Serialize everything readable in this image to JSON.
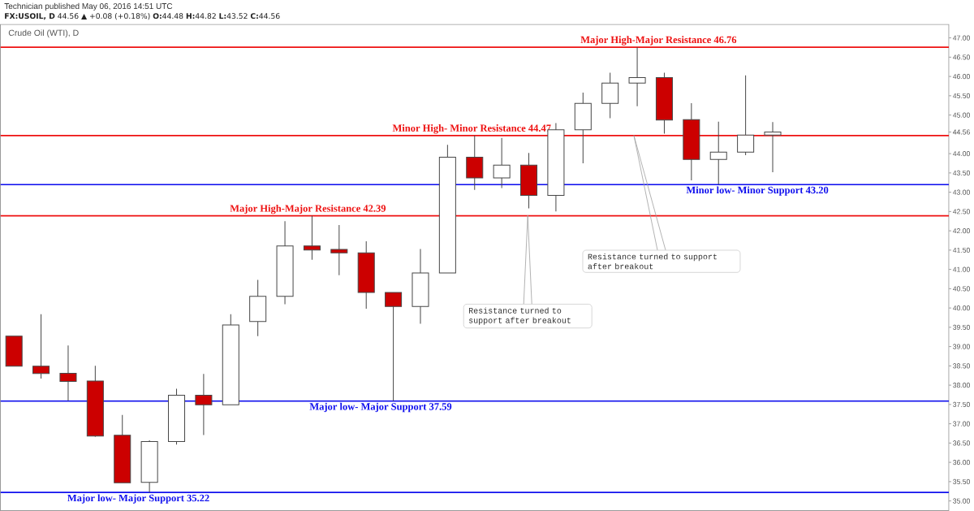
{
  "chart_data": {
    "type": "candlestick",
    "title": "Crude Oil (WTI), D",
    "subtitle": "**FX:USOIL, D** 44.56 ▲ +0.08 (+0.18%) **O:**44.48 **H:**44.82 **L:**43.52 **C:**44.56",
    "categories": [
      null,
      null,
      null,
      null,
      null,
      null,
      null,
      null,
      null,
      null,
      null,
      null,
      null,
      null,
      null,
      null,
      null,
      null,
      null,
      null,
      null,
      null,
      null,
      null,
      null,
      null,
      null,
      null,
      null,
      null,
      null,
      null,
      null,
      null,
      null
    ],
    "ohlc": [
      [
        39.27,
        39.27,
        38.49,
        38.49
      ],
      [
        38.49,
        39.84,
        38.17,
        38.3
      ],
      [
        38.31,
        39.03,
        37.6,
        38.1
      ],
      [
        38.11,
        38.5,
        36.66,
        36.68
      ],
      [
        36.7,
        37.23,
        35.47,
        35.47
      ],
      [
        35.48,
        36.57,
        35.22,
        36.54
      ],
      [
        36.54,
        37.91,
        36.46,
        37.74
      ],
      [
        37.74,
        38.29,
        36.71,
        37.49
      ],
      [
        37.49,
        39.84,
        37.48,
        39.56
      ],
      [
        39.65,
        40.73,
        39.27,
        40.3
      ],
      [
        40.3,
        42.25,
        40.1,
        41.61
      ],
      [
        41.61,
        42.39,
        41.25,
        41.5
      ],
      [
        41.52,
        42.15,
        40.85,
        41.43
      ],
      [
        41.43,
        41.73,
        39.98,
        40.4
      ],
      [
        40.4,
        40.4,
        37.59,
        40.04
      ],
      [
        40.04,
        41.53,
        39.59,
        40.91
      ],
      [
        40.91,
        44.23,
        40.91,
        43.91
      ],
      [
        43.91,
        44.47,
        43.06,
        43.37
      ],
      [
        43.37,
        44.41,
        43.11,
        43.7
      ],
      [
        43.7,
        44.02,
        42.58,
        42.92
      ],
      [
        42.92,
        44.79,
        42.5,
        44.62
      ],
      [
        44.62,
        45.58,
        43.75,
        45.3
      ],
      [
        45.3,
        46.1,
        44.92,
        45.83
      ],
      [
        45.83,
        46.76,
        45.23,
        45.97
      ],
      [
        45.97,
        46.1,
        44.52,
        44.87
      ],
      [
        44.88,
        45.31,
        43.31,
        43.85
      ],
      [
        43.85,
        44.83,
        43.2,
        44.04
      ],
      [
        44.04,
        46.03,
        43.96,
        44.48
      ],
      [
        44.48,
        44.82,
        43.52,
        44.56
      ],
      null,
      null,
      null,
      null,
      null,
      null
    ],
    "colors": [
      "#cc0000",
      "#cc0000",
      "#cc0000",
      "#cc0000",
      "#cc0000",
      "#ffffff",
      "#ffffff",
      "#cc0000",
      "#ffffff",
      "#ffffff",
      "#ffffff",
      "#cc0000",
      "#cc0000",
      "#cc0000",
      "#cc0000",
      "#ffffff",
      "#ffffff",
      "#cc0000",
      "#ffffff",
      "#cc0000",
      "#ffffff",
      "#ffffff",
      "#ffffff",
      "#ffffff",
      "#cc0000",
      "#cc0000",
      "#ffffff",
      "#ffffff",
      "#ffffff",
      null,
      null,
      null,
      null,
      null,
      null
    ],
    "ylim": [
      34.75,
      47.35
    ],
    "yticks": [
      {
        "value": 35,
        "label": "35.00"
      },
      {
        "value": 35.5,
        "label": "35.50"
      },
      {
        "value": 36,
        "label": "36.00"
      },
      {
        "value": 36.5,
        "label": "36.50"
      },
      {
        "value": 37,
        "label": "37.00"
      },
      {
        "value": 37.5,
        "label": "37.50"
      },
      {
        "value": 38,
        "label": "38.00"
      },
      {
        "value": 38.5,
        "label": "38.50"
      },
      {
        "value": 39,
        "label": "39.00"
      },
      {
        "value": 39.5,
        "label": "39.50"
      },
      {
        "value": 40,
        "label": "40.00"
      },
      {
        "value": 40.5,
        "label": "40.50"
      },
      {
        "value": 41,
        "label": "41.00"
      },
      {
        "value": 41.5,
        "label": "41.50"
      },
      {
        "value": 42,
        "label": "42.00"
      },
      {
        "value": 42.5,
        "label": "42.50"
      },
      {
        "value": 43,
        "label": "43.00"
      },
      {
        "value": 43.5,
        "label": "43.50"
      },
      {
        "value": 44,
        "label": "44.00"
      },
      {
        "value": 44.56,
        "label": "44.56"
      },
      {
        "value": 45,
        "label": "45.00"
      },
      {
        "value": 45.5,
        "label": "45.50"
      },
      {
        "value": 46,
        "label": "46.00"
      },
      {
        "value": 46.5,
        "label": "46.50"
      },
      {
        "value": 47,
        "label": "47.00"
      }
    ],
    "tick_labels": "y",
    "ref_lines": [
      {
        "axis": "y",
        "value": 46.76,
        "label": "Major High-Major Resistance 46.76",
        "color": "#ee1111"
      },
      {
        "axis": "y",
        "value": 44.47,
        "label": "Minor High- Minor Resistance 44.47",
        "color": "#ee1111"
      },
      {
        "axis": "y",
        "value": 42.39,
        "label": "Major High-Major Resistance 42.39",
        "color": "#ee1111"
      },
      {
        "axis": "y",
        "value": 43.2,
        "label": "Minor low- Minor Support 43.20",
        "color": "#1111ee"
      },
      {
        "axis": "y",
        "value": 37.59,
        "label": "Major low- Major Support 37.59",
        "color": "#1111ee"
      },
      {
        "axis": "y",
        "value": 35.22,
        "label": "Major low- Major Support 35.22",
        "color": "#1111ee"
      }
    ],
    "annotations": [
      "Technician published May 06, 2016 14:51 UTC",
      "Resistance turned to support after breakout",
      "Resistance turned to support after breakout"
    ]
  }
}
